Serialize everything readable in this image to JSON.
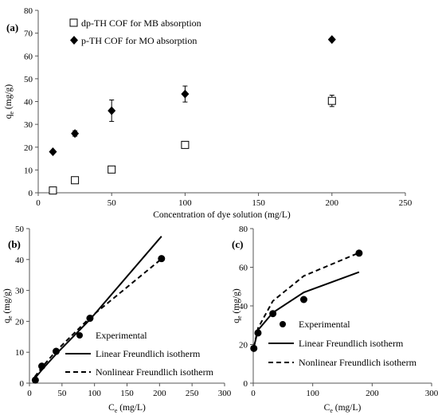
{
  "chart_data": [
    {
      "type": "scatter",
      "panel_label": "(a)",
      "xlabel": "Concentration of dye solution (mg/L)",
      "ylabel_main": "q",
      "ylabel_sub": "e",
      "ylabel_unit": " (mg/g)",
      "xlim": [
        0,
        250
      ],
      "ylim": [
        0,
        80
      ],
      "x_ticks": [
        "0",
        "50",
        "100",
        "150",
        "200",
        "250"
      ],
      "y_ticks": [
        "0",
        "10",
        "20",
        "30",
        "40",
        "50",
        "60",
        "70",
        "80"
      ],
      "grid": false,
      "legend_position": "top-left",
      "series": [
        {
          "name": "dp-TH COF for MB absorption",
          "marker": "open-square",
          "points": [
            {
              "x": 10,
              "y": 1.0,
              "err": 0.8
            },
            {
              "x": 25,
              "y": 5.5,
              "err": 0.7
            },
            {
              "x": 50,
              "y": 10.2,
              "err": 1.3
            },
            {
              "x": 100,
              "y": 21.0,
              "err": 0.8
            },
            {
              "x": 200,
              "y": 40.3,
              "err": 2.5
            }
          ]
        },
        {
          "name": "p-TH COF for MO absorption",
          "marker": "filled-diamond",
          "points": [
            {
              "x": 10,
              "y": 18.0,
              "err": 0.5
            },
            {
              "x": 25,
              "y": 26.0,
              "err": 1.2
            },
            {
              "x": 50,
              "y": 36.0,
              "err": 4.7
            },
            {
              "x": 100,
              "y": 43.3,
              "err": 3.5
            },
            {
              "x": 200,
              "y": 67.2,
              "err": 0.5
            }
          ]
        }
      ]
    },
    {
      "type": "scatter",
      "panel_label": "(b)",
      "xlabel_main": "C",
      "xlabel_sub": "e",
      "xlabel_unit": " (mg/L)",
      "ylabel_main": "q",
      "ylabel_sub": "e",
      "ylabel_unit": " (mg/g)",
      "xlim": [
        0,
        300
      ],
      "ylim": [
        0,
        50
      ],
      "x_ticks": [
        "0",
        "50",
        "100",
        "150",
        "200",
        "250",
        "300"
      ],
      "y_ticks": [
        "0",
        "10",
        "20",
        "30",
        "40",
        "50"
      ],
      "grid": false,
      "legend_position": "bottom-right",
      "series": [
        {
          "name": "Experimental",
          "marker": "filled-circle",
          "points": [
            [
              9,
              1.0
            ],
            [
              19,
              5.5
            ],
            [
              41,
              10.3
            ],
            [
              93,
              21.0
            ],
            [
              203,
              40.3
            ]
          ]
        },
        {
          "name": "Linear Freundlich isotherm",
          "style": "solid",
          "points": [
            [
              8,
              1.5
            ],
            [
              20,
              4.5
            ],
            [
              40,
              9.2
            ],
            [
              93,
              20.6
            ],
            [
              203,
              47.5
            ]
          ]
        },
        {
          "name": "Nonlinear Freundlich isotherm",
          "style": "dashed",
          "points": [
            [
              8,
              2.0
            ],
            [
              20,
              5.3
            ],
            [
              40,
              10.2
            ],
            [
              93,
              21.2
            ],
            [
              203,
              40.2
            ]
          ]
        }
      ]
    },
    {
      "type": "scatter",
      "panel_label": "(c)",
      "xlabel_main": "C",
      "xlabel_sub": "e",
      "xlabel_unit": " (mg/L)",
      "ylabel_main": "q",
      "ylabel_sub": "e",
      "ylabel_unit": " (mg/g)",
      "xlim": [
        0,
        300
      ],
      "ylim": [
        0,
        80
      ],
      "x_ticks": [
        "0",
        "100",
        "200",
        "300"
      ],
      "y_ticks": [
        "0",
        "20",
        "40",
        "60",
        "80"
      ],
      "grid": false,
      "legend_position": "bottom-right",
      "series": [
        {
          "name": "Experimental",
          "marker": "filled-circle",
          "points": [
            [
              1,
              18.0
            ],
            [
              8,
              26.0
            ],
            [
              33,
              36.0
            ],
            [
              85,
              43.3
            ],
            [
              178,
              67.3
            ]
          ]
        },
        {
          "name": "Linear Freundlich isotherm",
          "style": "solid",
          "points": [
            [
              1,
              18.5
            ],
            [
              8,
              27.5
            ],
            [
              33,
              36.5
            ],
            [
              85,
              47.0
            ],
            [
              178,
              57.5
            ]
          ]
        },
        {
          "name": "Nonlinear Freundlich isotherm",
          "style": "dashed",
          "points": [
            [
              1,
              18.5
            ],
            [
              8,
              28.5
            ],
            [
              33,
              42.5
            ],
            [
              85,
              55.5
            ],
            [
              178,
              67.5
            ]
          ]
        }
      ]
    }
  ]
}
